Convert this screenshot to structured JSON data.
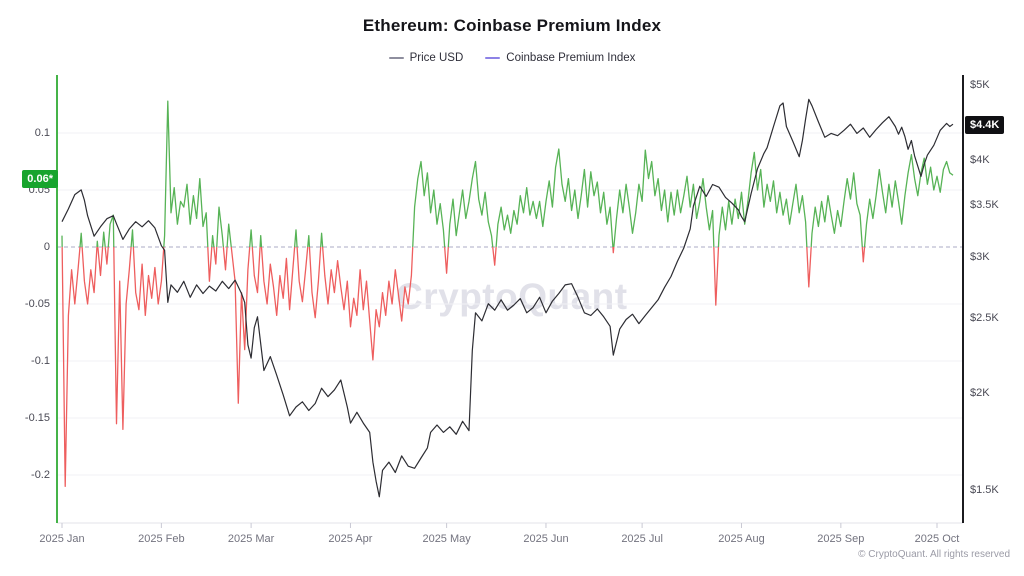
{
  "title": "Ethereum: Coinbase Premium Index",
  "watermark": "CryptoQuant",
  "footer": "© CryptoQuant. All rights reserved",
  "legend": [
    {
      "label": "Price USD",
      "color": "#8e8e9e"
    },
    {
      "label": "Coinbase Premium Index",
      "color": "#8d82e6"
    }
  ],
  "badges": {
    "premium": {
      "text": "0.06*",
      "bg": "#17a42d",
      "color": "#ffffff"
    },
    "price": {
      "text": "$4.4K",
      "bg": "#101013",
      "color": "#ffffff"
    }
  },
  "colors": {
    "premium_positive": "#57b356",
    "premium_negative": "#ee5e5e",
    "price_line": "#2d2d33",
    "left_axis": "#45b348",
    "right_axis": "#1b1b1f",
    "grid": "#f1f1f5",
    "zero_line": "#ababc4",
    "bottom_axis": "#e3e3ea"
  },
  "chart_data": {
    "type": "line",
    "title": "Ethereum: Coinbase Premium Index",
    "grid": true,
    "legend_position": "top-center",
    "x_axis": {
      "unit": "date",
      "start": "2025-01-01",
      "end": "2025-10-06",
      "ticks": [
        {
          "label": "2025 Jan",
          "day": 0
        },
        {
          "label": "2025 Feb",
          "day": 31
        },
        {
          "label": "2025 Mar",
          "day": 59
        },
        {
          "label": "2025 Apr",
          "day": 90
        },
        {
          "label": "2025 May",
          "day": 120
        },
        {
          "label": "2025 Jun",
          "day": 151
        },
        {
          "label": "2025 Jul",
          "day": 181
        },
        {
          "label": "2025 Aug",
          "day": 212
        },
        {
          "label": "2025 Sep",
          "day": 243
        },
        {
          "label": "2025 Oct",
          "day": 273
        }
      ]
    },
    "left_axis": {
      "series": "Coinbase Premium Index",
      "scale": "linear",
      "range": [
        -0.245,
        0.151
      ],
      "ticks": [
        {
          "label": "0.1",
          "value": 0.1
        },
        {
          "label": "0.05",
          "value": 0.05
        },
        {
          "label": "0",
          "value": 0
        },
        {
          "label": "-0.05",
          "value": -0.05
        },
        {
          "label": "-0.1",
          "value": -0.1
        },
        {
          "label": "-0.15",
          "value": -0.15
        },
        {
          "label": "-0.2",
          "value": -0.2
        }
      ],
      "current_value": 0.06
    },
    "right_axis": {
      "series": "Price USD",
      "scale": "log",
      "ticks": [
        {
          "label": "$5K",
          "value": 5000
        },
        {
          "label": "$4K",
          "value": 4000
        },
        {
          "label": "$3.5K",
          "value": 3500
        },
        {
          "label": "$3K",
          "value": 3000
        },
        {
          "label": "$2.5K",
          "value": 2500
        },
        {
          "label": "$2K",
          "value": 2000
        },
        {
          "label": "$1.5K",
          "value": 1500
        }
      ],
      "current_value": 4400
    },
    "series": [
      {
        "name": "Price USD",
        "axis": "right",
        "style": "line",
        "points": [
          [
            0,
            3330
          ],
          [
            2,
            3460
          ],
          [
            4,
            3610
          ],
          [
            6,
            3660
          ],
          [
            7,
            3550
          ],
          [
            8,
            3390
          ],
          [
            10,
            3190
          ],
          [
            12,
            3280
          ],
          [
            14,
            3360
          ],
          [
            16,
            3390
          ],
          [
            17,
            3310
          ],
          [
            19,
            3160
          ],
          [
            21,
            3260
          ],
          [
            23,
            3330
          ],
          [
            25,
            3280
          ],
          [
            27,
            3340
          ],
          [
            29,
            3270
          ],
          [
            31,
            3100
          ],
          [
            32,
            3060
          ],
          [
            33,
            2620
          ],
          [
            34,
            2760
          ],
          [
            36,
            2700
          ],
          [
            38,
            2790
          ],
          [
            40,
            2660
          ],
          [
            42,
            2760
          ],
          [
            44,
            2690
          ],
          [
            46,
            2750
          ],
          [
            48,
            2710
          ],
          [
            50,
            2790
          ],
          [
            52,
            2730
          ],
          [
            54,
            2800
          ],
          [
            56,
            2690
          ],
          [
            57,
            2620
          ],
          [
            58,
            2310
          ],
          [
            59,
            2220
          ],
          [
            60,
            2430
          ],
          [
            61,
            2510
          ],
          [
            63,
            2140
          ],
          [
            65,
            2230
          ],
          [
            67,
            2110
          ],
          [
            69,
            1990
          ],
          [
            71,
            1870
          ],
          [
            73,
            1920
          ],
          [
            75,
            1950
          ],
          [
            77,
            1900
          ],
          [
            79,
            1940
          ],
          [
            81,
            2030
          ],
          [
            83,
            1980
          ],
          [
            85,
            2020
          ],
          [
            87,
            2080
          ],
          [
            89,
            1920
          ],
          [
            90,
            1830
          ],
          [
            92,
            1890
          ],
          [
            94,
            1830
          ],
          [
            96,
            1780
          ],
          [
            97,
            1630
          ],
          [
            98,
            1540
          ],
          [
            99,
            1470
          ],
          [
            100,
            1590
          ],
          [
            102,
            1630
          ],
          [
            104,
            1580
          ],
          [
            106,
            1660
          ],
          [
            108,
            1610
          ],
          [
            110,
            1600
          ],
          [
            112,
            1650
          ],
          [
            114,
            1700
          ],
          [
            115,
            1780
          ],
          [
            117,
            1820
          ],
          [
            119,
            1780
          ],
          [
            121,
            1810
          ],
          [
            123,
            1770
          ],
          [
            125,
            1840
          ],
          [
            127,
            1790
          ],
          [
            128,
            2270
          ],
          [
            129,
            2540
          ],
          [
            131,
            2480
          ],
          [
            133,
            2610
          ],
          [
            135,
            2560
          ],
          [
            137,
            2640
          ],
          [
            139,
            2560
          ],
          [
            141,
            2600
          ],
          [
            143,
            2650
          ],
          [
            145,
            2540
          ],
          [
            147,
            2580
          ],
          [
            149,
            2660
          ],
          [
            151,
            2540
          ],
          [
            153,
            2630
          ],
          [
            155,
            2690
          ],
          [
            157,
            2760
          ],
          [
            159,
            2770
          ],
          [
            161,
            2660
          ],
          [
            163,
            2540
          ],
          [
            165,
            2520
          ],
          [
            167,
            2570
          ],
          [
            169,
            2510
          ],
          [
            171,
            2440
          ],
          [
            172,
            2240
          ],
          [
            174,
            2420
          ],
          [
            176,
            2490
          ],
          [
            178,
            2530
          ],
          [
            180,
            2460
          ],
          [
            182,
            2520
          ],
          [
            184,
            2580
          ],
          [
            186,
            2640
          ],
          [
            188,
            2740
          ],
          [
            190,
            2830
          ],
          [
            192,
            2960
          ],
          [
            194,
            3080
          ],
          [
            196,
            3260
          ],
          [
            197,
            3490
          ],
          [
            199,
            3700
          ],
          [
            201,
            3590
          ],
          [
            203,
            3720
          ],
          [
            205,
            3690
          ],
          [
            207,
            3580
          ],
          [
            209,
            3520
          ],
          [
            211,
            3450
          ],
          [
            212,
            3380
          ],
          [
            213,
            3330
          ],
          [
            215,
            3620
          ],
          [
            217,
            3900
          ],
          [
            219,
            4080
          ],
          [
            220,
            4150
          ],
          [
            222,
            4420
          ],
          [
            224,
            4700
          ],
          [
            225,
            4740
          ],
          [
            226,
            4420
          ],
          [
            228,
            4230
          ],
          [
            230,
            4040
          ],
          [
            231,
            4240
          ],
          [
            232,
            4520
          ],
          [
            233,
            4790
          ],
          [
            234,
            4700
          ],
          [
            236,
            4480
          ],
          [
            238,
            4280
          ],
          [
            240,
            4330
          ],
          [
            242,
            4300
          ],
          [
            244,
            4370
          ],
          [
            246,
            4450
          ],
          [
            248,
            4330
          ],
          [
            250,
            4400
          ],
          [
            252,
            4280
          ],
          [
            254,
            4380
          ],
          [
            256,
            4470
          ],
          [
            258,
            4550
          ],
          [
            260,
            4420
          ],
          [
            261,
            4320
          ],
          [
            262,
            4410
          ],
          [
            263,
            4290
          ],
          [
            264,
            4130
          ],
          [
            265,
            4240
          ],
          [
            266,
            4050
          ],
          [
            268,
            3810
          ],
          [
            269,
            3950
          ],
          [
            270,
            4060
          ],
          [
            272,
            4180
          ],
          [
            274,
            4370
          ],
          [
            276,
            4460
          ],
          [
            277,
            4420
          ],
          [
            278,
            4450
          ]
        ]
      },
      {
        "name": "Coinbase Premium Index",
        "axis": "left",
        "style": "line-sign-colored",
        "start_day": 0,
        "daily_values": [
          0.01,
          -0.21,
          -0.06,
          -0.02,
          -0.05,
          -0.02,
          0.012,
          -0.03,
          -0.05,
          -0.02,
          -0.04,
          0.005,
          -0.025,
          0.013,
          -0.015,
          0.02,
          0.028,
          -0.155,
          -0.03,
          -0.16,
          -0.05,
          -0.02,
          0.015,
          -0.04,
          -0.055,
          -0.015,
          -0.06,
          -0.025,
          -0.045,
          -0.018,
          -0.05,
          -0.03,
          0.01,
          0.128,
          0.03,
          0.052,
          0.02,
          0.04,
          0.035,
          0.055,
          0.02,
          0.045,
          0.025,
          0.06,
          0.018,
          0.03,
          -0.03,
          0.01,
          -0.015,
          0.035,
          0.01,
          -0.02,
          0.02,
          -0.005,
          -0.03,
          -0.137,
          -0.04,
          -0.09,
          -0.02,
          0.015,
          -0.025,
          -0.04,
          0.01,
          -0.03,
          -0.05,
          -0.015,
          -0.035,
          -0.06,
          -0.025,
          -0.045,
          -0.01,
          -0.055,
          -0.02,
          0.015,
          -0.03,
          -0.048,
          -0.02,
          0.01,
          -0.04,
          -0.062,
          -0.03,
          0.012,
          -0.025,
          -0.05,
          -0.02,
          -0.04,
          -0.012,
          -0.035,
          -0.055,
          -0.03,
          -0.07,
          -0.045,
          -0.06,
          -0.02,
          -0.055,
          -0.03,
          -0.065,
          -0.099,
          -0.055,
          -0.07,
          -0.04,
          -0.06,
          -0.03,
          -0.05,
          -0.02,
          -0.042,
          -0.065,
          -0.035,
          -0.05,
          -0.025,
          0.035,
          0.06,
          0.075,
          0.045,
          0.065,
          0.03,
          0.05,
          0.02,
          0.038,
          0.015,
          -0.023,
          0.02,
          0.042,
          0.01,
          0.03,
          0.05,
          0.025,
          0.04,
          0.06,
          0.075,
          0.042,
          0.028,
          0.048,
          0.022,
          0.01,
          -0.016,
          0.02,
          0.035,
          0.015,
          0.028,
          0.012,
          0.032,
          0.02,
          0.045,
          0.03,
          0.052,
          0.028,
          0.04,
          0.025,
          0.04,
          0.018,
          0.04,
          0.058,
          0.035,
          0.07,
          0.086,
          0.055,
          0.04,
          0.06,
          0.032,
          0.05,
          0.025,
          0.045,
          0.068,
          0.035,
          0.066,
          0.045,
          0.057,
          0.03,
          0.048,
          0.02,
          0.035,
          -0.005,
          0.025,
          0.05,
          0.03,
          0.055,
          0.035,
          0.012,
          0.03,
          0.055,
          0.04,
          0.085,
          0.06,
          0.075,
          0.045,
          0.06,
          0.032,
          0.05,
          0.022,
          0.048,
          0.028,
          0.05,
          0.03,
          0.045,
          0.062,
          0.035,
          0.055,
          0.025,
          0.04,
          0.06,
          0.035,
          0.015,
          0.032,
          -0.051,
          0.01,
          0.035,
          0.015,
          0.04,
          0.02,
          0.042,
          0.025,
          0.048,
          0.02,
          0.04,
          0.065,
          0.083,
          0.05,
          0.068,
          0.035,
          0.055,
          0.04,
          0.058,
          0.03,
          0.048,
          0.028,
          0.042,
          0.02,
          0.038,
          0.055,
          0.03,
          0.045,
          0.022,
          -0.035,
          0.012,
          0.035,
          0.018,
          0.04,
          0.022,
          0.045,
          0.028,
          0.012,
          0.032,
          0.018,
          0.04,
          0.06,
          0.042,
          0.065,
          0.038,
          0.028,
          -0.013,
          0.02,
          0.042,
          0.025,
          0.045,
          0.068,
          0.048,
          0.03,
          0.055,
          0.035,
          0.058,
          0.04,
          0.02,
          0.045,
          0.065,
          0.081,
          0.06,
          0.045,
          0.065,
          0.078,
          0.055,
          0.07,
          0.05,
          0.062,
          0.048,
          0.068,
          0.075,
          0.065,
          0.063
        ]
      }
    ]
  }
}
